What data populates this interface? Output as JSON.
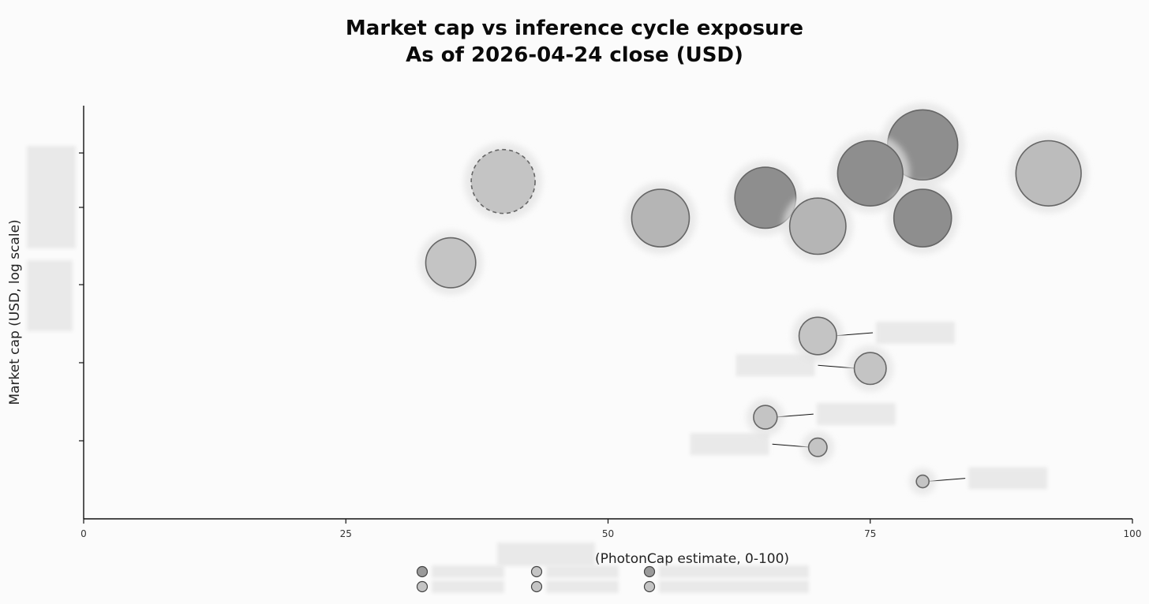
{
  "chart_data": {
    "type": "scatter",
    "title": "Market cap vs inference cycle exposure",
    "subtitle": "As of 2026-04-24 close (USD)",
    "xlabel": "(PhotonCap estimate, 0-100)",
    "ylabel": "Market cap (USD, log scale)",
    "xlim": [
      0,
      100
    ],
    "x_ticks": [
      0,
      25,
      50,
      75,
      100
    ],
    "y_scale": "log",
    "y_tick_count": 5,
    "grid": false,
    "legend_placement": "bottom-center",
    "legend_markers": [
      {
        "fill": "#9a9a9a"
      },
      {
        "fill": "#c4c4c4"
      },
      {
        "fill": "#9a9a9a"
      },
      {
        "fill": "#c4c4c4"
      },
      {
        "fill": "#c4c4c4"
      },
      {
        "fill": "#c4c4c4"
      }
    ],
    "points": [
      {
        "x": 80,
        "y": 4.6,
        "fill": "#8e8e8e",
        "dashed": false,
        "label_redacted": true
      },
      {
        "x": 75,
        "y": 4.25,
        "fill": "#8e8e8e",
        "dashed": false,
        "label_redacted": true
      },
      {
        "x": 92,
        "y": 4.25,
        "fill": "#bcbcbc",
        "dashed": false,
        "label_redacted": true
      },
      {
        "x": 40,
        "y": 4.15,
        "fill": "#c4c4c4",
        "dashed": true,
        "label_redacted": true
      },
      {
        "x": 65,
        "y": 3.95,
        "fill": "#8e8e8e",
        "dashed": false,
        "label_redacted": true
      },
      {
        "x": 55,
        "y": 3.7,
        "fill": "#b5b5b5",
        "dashed": false,
        "label_redacted": true
      },
      {
        "x": 80,
        "y": 3.7,
        "fill": "#8e8e8e",
        "dashed": false,
        "label_redacted": true
      },
      {
        "x": 70,
        "y": 3.6,
        "fill": "#b5b5b5",
        "dashed": false,
        "label_redacted": true
      },
      {
        "x": 35,
        "y": 3.15,
        "fill": "#c4c4c4",
        "dashed": false,
        "label_redacted": true
      },
      {
        "x": 70,
        "y": 2.25,
        "fill": "#c4c4c4",
        "dashed": false,
        "label_redacted": true
      },
      {
        "x": 75,
        "y": 1.85,
        "fill": "#c4c4c4",
        "dashed": false,
        "label_redacted": true
      },
      {
        "x": 65,
        "y": 1.25,
        "fill": "#c4c4c4",
        "dashed": false,
        "label_redacted": true
      },
      {
        "x": 70,
        "y": 0.88,
        "fill": "#c4c4c4",
        "dashed": false,
        "label_redacted": true
      },
      {
        "x": 80,
        "y": 0.46,
        "fill": "#c4c4c4",
        "dashed": false,
        "label_redacted": true
      }
    ]
  }
}
